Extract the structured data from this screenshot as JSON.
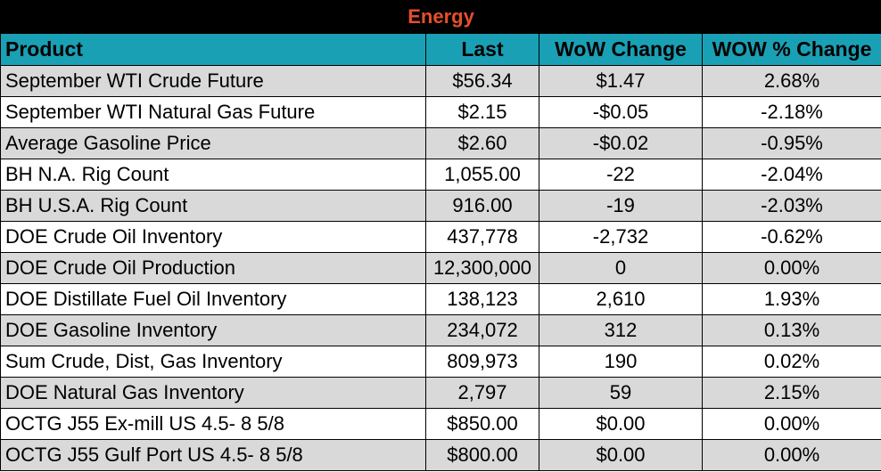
{
  "title": "Energy",
  "headers": [
    "Product",
    "Last",
    "WoW Change",
    "WOW % Change"
  ],
  "rows": [
    [
      "September WTI Crude Future",
      "$56.34",
      "$1.47",
      "2.68%"
    ],
    [
      "September WTI Natural Gas Future",
      "$2.15",
      "-$0.05",
      "-2.18%"
    ],
    [
      "Average Gasoline Price",
      "$2.60",
      "-$0.02",
      "-0.95%"
    ],
    [
      "BH N.A. Rig Count",
      "1,055.00",
      "-22",
      "-2.04%"
    ],
    [
      "BH U.S.A. Rig Count",
      "916.00",
      "-19",
      "-2.03%"
    ],
    [
      "DOE Crude Oil Inventory",
      "437,778",
      "-2,732",
      "-0.62%"
    ],
    [
      "DOE Crude Oil Production",
      "12,300,000",
      "0",
      "0.00%"
    ],
    [
      "DOE Distillate Fuel Oil Inventory",
      "138,123",
      "2,610",
      "1.93%"
    ],
    [
      "DOE Gasoline Inventory",
      "234,072",
      "312",
      "0.13%"
    ],
    [
      "Sum Crude, Dist, Gas Inventory",
      "809,973",
      "190",
      "0.02%"
    ],
    [
      "DOE Natural Gas Inventory",
      "2,797",
      "59",
      "2.15%"
    ],
    [
      "OCTG J55 Ex-mill US 4.5- 8 5/8",
      "$850.00",
      "$0.00",
      "0.00%"
    ],
    [
      "OCTG J55 Gulf Port US 4.5- 8 5/8",
      "$800.00",
      "$0.00",
      "0.00%"
    ]
  ],
  "colors": {
    "title_bg": "#000000",
    "title_text": "#e4502a",
    "header_bg": "#1aa0b4",
    "row_alt_bg": "#d9d9d9",
    "row_plain_bg": "#ffffff"
  }
}
